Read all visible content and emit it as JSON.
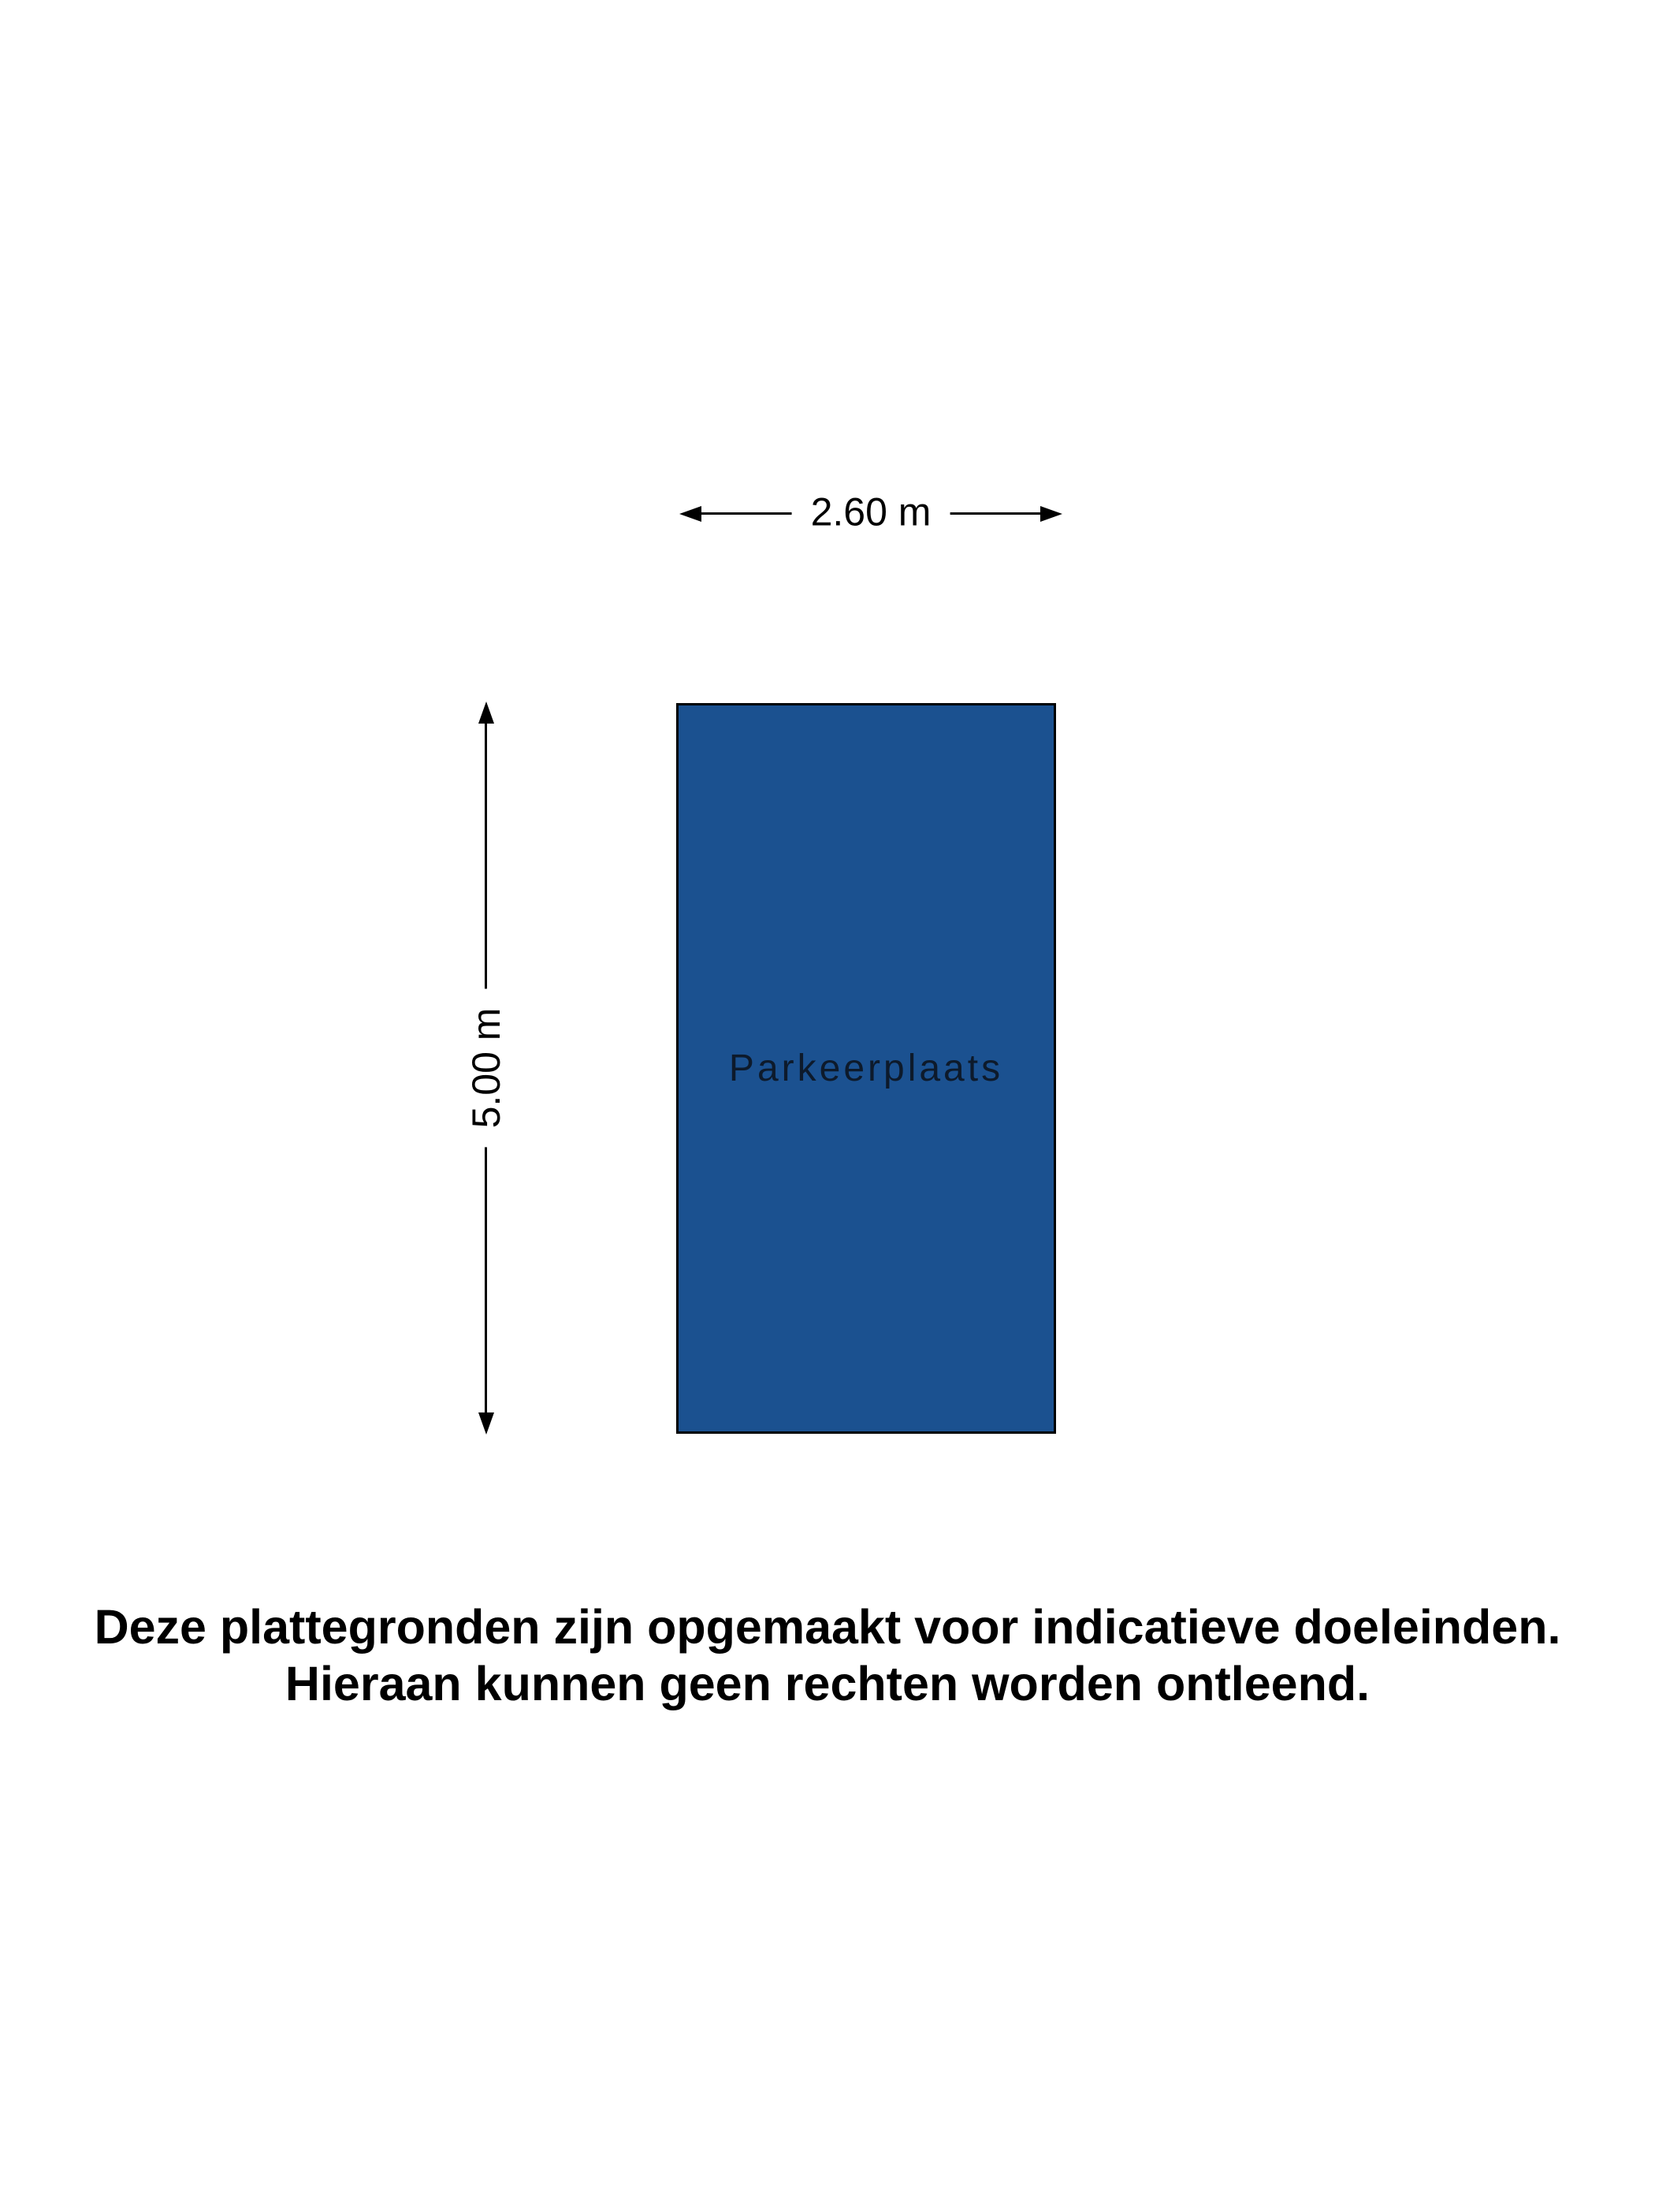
{
  "floorplan": {
    "room_label": "Parkeerplaats",
    "width_label": "2.60 m",
    "height_label": "5.00 m"
  },
  "disclaimer": {
    "line1": "Deze plattegronden zijn opgemaakt voor indicatieve doeleinden.",
    "line2": "Hieraan kunnen geen rechten worden ontleend."
  },
  "colors": {
    "background": "#ffffff",
    "room_fill": "#1b5190",
    "room_border": "#000000",
    "room_label_color": "#0d1a2b",
    "dimension_color": "#000000",
    "disclaimer_color": "#000000"
  }
}
